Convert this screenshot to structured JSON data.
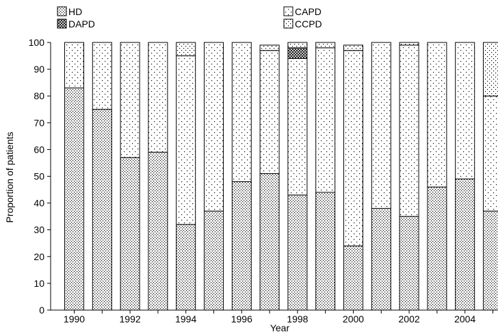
{
  "chart_data": {
    "type": "bar",
    "stacked": true,
    "title": "",
    "xlabel": "Year",
    "ylabel": "Proportion of patients",
    "ylim": [
      0,
      100
    ],
    "yticks": [
      0,
      10,
      20,
      30,
      40,
      50,
      60,
      70,
      80,
      90,
      100
    ],
    "xtick_labels": [
      "1990",
      "1992",
      "1994",
      "1996",
      "1998",
      "2000",
      "2002",
      "2004"
    ],
    "categories": [
      "1990",
      "1991",
      "1992",
      "1993",
      "1994",
      "1995",
      "1996",
      "1997",
      "1998",
      "1999",
      "2000",
      "2001",
      "2002",
      "2003",
      "2004",
      "2005"
    ],
    "legend_position": "top",
    "series": [
      {
        "name": "HD",
        "pattern": "dense-dots",
        "values": [
          83,
          75,
          57,
          59,
          32,
          37,
          48,
          51,
          43,
          44,
          24,
          38,
          35,
          46,
          49,
          37
        ]
      },
      {
        "name": "CAPD",
        "pattern": "sparse-dots",
        "values": [
          17,
          25,
          43,
          41,
          63,
          63,
          52,
          46,
          51,
          54,
          73,
          62,
          64,
          54,
          51,
          43
        ]
      },
      {
        "name": "DAPD",
        "pattern": "crosshatch",
        "values": [
          0,
          0,
          0,
          0,
          0,
          0,
          0,
          0,
          4,
          0,
          0,
          0,
          0,
          0,
          0,
          0
        ]
      },
      {
        "name": "CCPD",
        "pattern": "medium-dots",
        "values": [
          0,
          0,
          0,
          0,
          5,
          0,
          0,
          2,
          2,
          2,
          2,
          0,
          1,
          0,
          0,
          20
        ]
      }
    ]
  }
}
